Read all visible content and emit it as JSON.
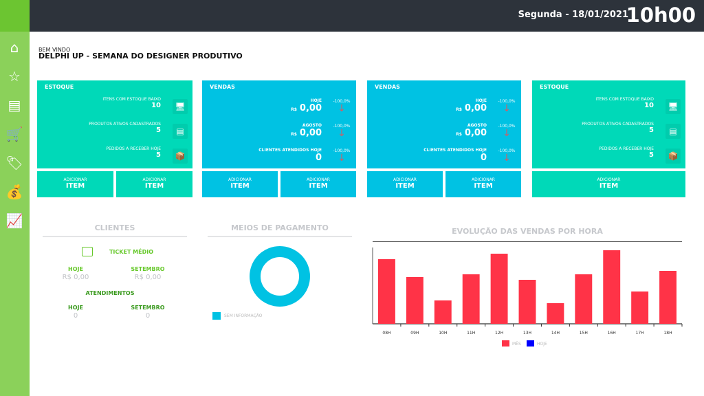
{
  "header": {
    "date": "Segunda - 18/01/2021",
    "time": "10h00"
  },
  "sidebar": {
    "items": [
      {
        "name": "home-icon",
        "glyph": "⌂"
      },
      {
        "name": "star-icon",
        "glyph": "☆"
      },
      {
        "name": "barcode-scanner-icon",
        "glyph": "▤"
      },
      {
        "name": "cart-icon",
        "glyph": "🛒"
      },
      {
        "name": "price-tag-icon",
        "glyph": "🏷"
      },
      {
        "name": "money-bag-icon",
        "glyph": "💰"
      },
      {
        "name": "chart-board-icon",
        "glyph": "📈"
      }
    ]
  },
  "page": {
    "welcome": "BEM VINDO",
    "title": "DELPHI UP - SEMANA DO DESIGNER PRODUTIVO"
  },
  "cards": [
    {
      "title": "ESTOQUE",
      "rows": [
        {
          "label": "ITENS COM ESTOQUE BAIXO",
          "value": "10"
        },
        {
          "label": "PRODUTOS ATIVOS CADASTRADOS",
          "value": "5"
        },
        {
          "label": "PEDIDOS A RECEBER HOJE",
          "value": "5"
        }
      ],
      "buttons": [
        {
          "small": "ADICIONAR",
          "main": "ITEM"
        },
        {
          "small": "ADICIONAR",
          "main": "ITEM"
        }
      ]
    },
    {
      "title": "VENDAS",
      "rows": [
        {
          "label": "HOJE",
          "currency": "R$",
          "value": "0,00",
          "pct": "-100,0%"
        },
        {
          "label": "AGOSTO",
          "currency": "R$",
          "value": "0,00",
          "pct": "-100,0%"
        },
        {
          "label": "CLIENTES ATENDIDOS HOJE",
          "value": "0",
          "pct": "-100,0%"
        }
      ],
      "buttons": [
        {
          "small": "ADICIONAR",
          "main": "ITEM"
        },
        {
          "small": "ADICIONAR",
          "main": "ITEM"
        }
      ]
    },
    {
      "title": "VENDAS",
      "rows": [
        {
          "label": "HOJE",
          "currency": "R$",
          "value": "0,00",
          "pct": "-100,0%"
        },
        {
          "label": "AGOSTO",
          "currency": "R$",
          "value": "0,00",
          "pct": "-100,0%"
        },
        {
          "label": "CLIENTES ATENDIDOS HOJE",
          "value": "0",
          "pct": "-100,0%"
        }
      ],
      "buttons": [
        {
          "small": "ADICIONAR",
          "main": "ITEM"
        },
        {
          "small": "ADICIONAR",
          "main": "ITEM"
        }
      ]
    },
    {
      "title": "ESTOQUE",
      "rows": [
        {
          "label": "ITENS COM ESTOQUE BAIXO",
          "value": "10"
        },
        {
          "label": "PRODUTOS ATIVOS CADASTRADOS",
          "value": "5"
        },
        {
          "label": "PEDIDOS A RECEBER HOJE",
          "value": "5"
        }
      ],
      "buttons": [
        {
          "small": "ADICIONAR",
          "main": "ITEM"
        }
      ]
    }
  ],
  "clientes": {
    "title": "CLIENTES",
    "ticket_label": "TICKET MÉDIO",
    "hoje_label": "HOJE",
    "mes_label": "SETEMBRO",
    "ticket_hoje": "R$ 0,00",
    "ticket_mes": "R$ 0,00",
    "atend_label": "ATENDIMENTOS",
    "atend_hoje_label": "HOJE",
    "atend_mes_label": "SETEMBRO",
    "atend_hoje": "0",
    "atend_mes": "0"
  },
  "pagamento": {
    "title": "MEIOS DE PAGAMENTO",
    "legend": "SEM INFORMAÇÃO",
    "color": "#00c2e3"
  },
  "colors": {
    "green_card": "#00d9b8",
    "blue_card": "#00c2e3",
    "bar_mes": "#ff3347",
    "bar_hoje": "#0000ff",
    "sidebar": "#8bd15a",
    "header": "#2d333b"
  },
  "chart_data": {
    "type": "bar",
    "title": "EVOLUÇÃO DAS VENDAS POR HORA",
    "categories": [
      "08H",
      "09H",
      "10H",
      "11H",
      "12H",
      "13H",
      "14H",
      "15H",
      "16H",
      "17H",
      "18H"
    ],
    "series": [
      {
        "name": "MÊS",
        "color": "#ff3347",
        "values": [
          94,
          68,
          34,
          72,
          102,
          64,
          30,
          72,
          107,
          47,
          77
        ]
      },
      {
        "name": "HOJE",
        "color": "#0000ff",
        "values": [
          0,
          0,
          0,
          0,
          0,
          0,
          0,
          0,
          0,
          0,
          0
        ]
      }
    ],
    "ylim": [
      0,
      111
    ],
    "grid": false,
    "legend": "bottom"
  }
}
